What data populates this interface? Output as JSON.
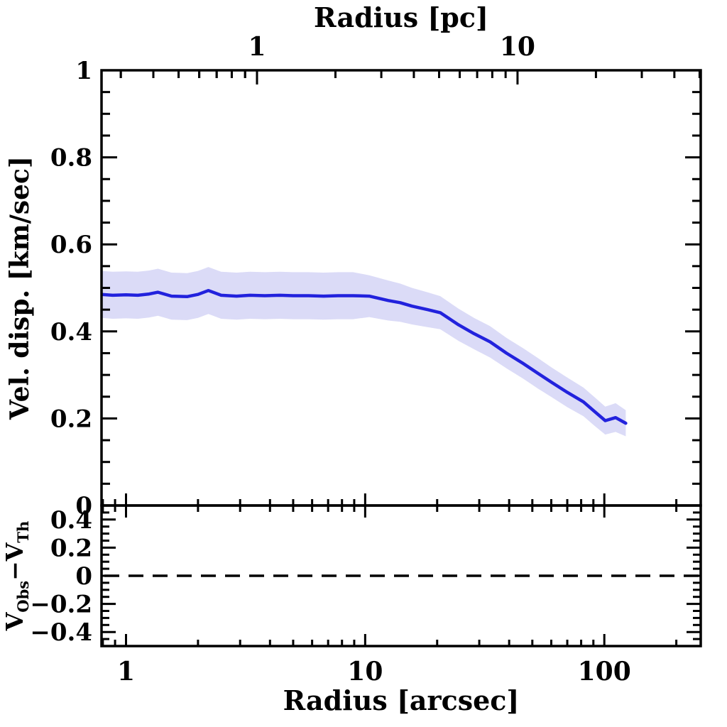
{
  "figure": {
    "background": "#ffffff",
    "axis_color": "#000000"
  },
  "chart_data": {
    "type": "line",
    "x_scale": "log",
    "top_axis": {
      "title": "Radius [pc]",
      "range": [
        0.253,
        50.5
      ],
      "major_ticks": [
        1,
        10
      ],
      "tick_labels": [
        "1",
        "10"
      ]
    },
    "bottom_axis": {
      "title": "Radius [arcsec]",
      "range": [
        0.79,
        253
      ],
      "major_ticks": [
        1,
        10,
        100
      ],
      "tick_labels": [
        "1",
        "10",
        "100"
      ]
    },
    "main_panel": {
      "ylabel": "Vel. disp. [km/sec]",
      "ylim": [
        0,
        1
      ],
      "major_yticks": [
        0,
        0.2,
        0.4,
        0.6,
        0.8,
        1
      ],
      "ytick_labels": [
        "0",
        "0.2",
        "0.4",
        "0.6",
        "0.8",
        "1"
      ],
      "minor_ystep": 0.05,
      "grid": "off"
    },
    "residual_panel": {
      "ylabel_parts": [
        {
          "t": "V",
          "sub": false
        },
        {
          "t": "Obs",
          "sub": true
        },
        {
          "t": "−",
          "sub": false
        },
        {
          "t": "V",
          "sub": false
        },
        {
          "t": "Th",
          "sub": true
        }
      ],
      "ylim": [
        -0.5,
        0.5
      ],
      "major_yticks": [
        -0.4,
        -0.2,
        0,
        0.2,
        0.4
      ],
      "ytick_labels": [
        "−0.4",
        "−0.2",
        "0",
        "0.2",
        "0.4"
      ],
      "minor_ystep": 0.05,
      "zero_line": {
        "value": 0,
        "style": "dashed",
        "color": "#000000"
      }
    },
    "series": [
      {
        "name": "velocity-dispersion-profile",
        "color": "#2222dd",
        "band_color": "#dbdbf7",
        "x_arcsec": [
          0.79,
          0.88,
          1.0,
          1.12,
          1.25,
          1.36,
          1.55,
          1.8,
          2.0,
          2.21,
          2.5,
          2.9,
          3.3,
          3.8,
          4.4,
          5.0,
          5.8,
          6.7,
          7.7,
          8.9,
          10.4,
          12.5,
          14.0,
          15.7,
          18.2,
          20.6,
          24.6,
          28.5,
          33.3,
          39.0,
          45.9,
          53.0,
          60.6,
          70.0,
          81.8,
          91.0,
          100.9,
          111.5,
          122.9
        ],
        "y_km_s": [
          0.485,
          0.483,
          0.484,
          0.483,
          0.486,
          0.49,
          0.481,
          0.48,
          0.485,
          0.494,
          0.483,
          0.481,
          0.483,
          0.482,
          0.483,
          0.482,
          0.482,
          0.481,
          0.482,
          0.482,
          0.481,
          0.471,
          0.466,
          0.458,
          0.45,
          0.443,
          0.415,
          0.395,
          0.376,
          0.35,
          0.326,
          0.303,
          0.282,
          0.26,
          0.238,
          0.216,
          0.195,
          0.202,
          0.189
        ],
        "band_halfwidth": [
          0.054,
          0.054,
          0.054,
          0.054,
          0.054,
          0.054,
          0.054,
          0.054,
          0.054,
          0.054,
          0.054,
          0.054,
          0.054,
          0.054,
          0.054,
          0.054,
          0.054,
          0.054,
          0.054,
          0.054,
          0.048,
          0.046,
          0.044,
          0.042,
          0.04,
          0.038,
          0.037,
          0.036,
          0.036,
          0.035,
          0.035,
          0.035,
          0.034,
          0.034,
          0.033,
          0.033,
          0.032,
          0.033,
          0.03
        ]
      }
    ],
    "residual_series": []
  }
}
